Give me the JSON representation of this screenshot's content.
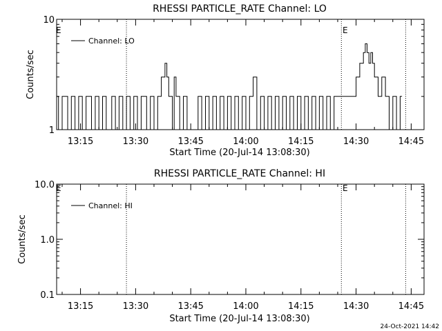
{
  "footer": {
    "timestamp": "24-Oct-2021 14:42"
  },
  "chart_data": [
    {
      "type": "line",
      "title": "RHESSI PARTICLE_RATE Channel: LO",
      "xlabel": "Start Time (20-Jul-14 13:08:30)",
      "ylabel": "Counts/sec",
      "yscale": "log",
      "ylim": [
        1,
        10
      ],
      "yticks": [
        "1",
        "10"
      ],
      "xlim": [
        "13:08:30",
        "14:48:30"
      ],
      "xticks": [
        "13:15",
        "13:30",
        "13:45",
        "14:00",
        "14:15",
        "14:30",
        "14:45"
      ],
      "legend": {
        "placement": "top-left",
        "entries": [
          "Channel: LO"
        ]
      },
      "annotations": [
        {
          "label": "E",
          "x": "13:08:30"
        },
        {
          "label": "E",
          "x": "14:26:00"
        }
      ],
      "vlines": [
        "13:27:30",
        "14:26:00",
        "14:43:30"
      ],
      "series": [
        {
          "name": "Channel: LO",
          "x": [
            "13:08:30",
            "13:09:00",
            "13:10:00",
            "13:11:30",
            "13:12:30",
            "13:13:30",
            "13:14:30",
            "13:15:30",
            "13:16:30",
            "13:18:00",
            "13:19:00",
            "13:20:00",
            "13:21:00",
            "13:22:00",
            "13:23:30",
            "13:24:30",
            "13:25:30",
            "13:26:30",
            "13:27:30",
            "13:28:30",
            "13:29:30",
            "13:30:30",
            "13:31:30",
            "13:33:00",
            "13:34:00",
            "13:35:00",
            "13:36:00",
            "13:37:00",
            "13:38:00",
            "13:38:30",
            "13:39:00",
            "13:40:00",
            "13:40:30",
            "13:41:00",
            "13:42:00",
            "13:43:00",
            "13:44:00",
            "13:47:00",
            "13:48:00",
            "13:49:00",
            "13:50:00",
            "13:51:00",
            "13:52:00",
            "13:53:00",
            "13:54:00",
            "13:55:00",
            "13:56:00",
            "13:57:00",
            "13:58:00",
            "13:59:00",
            "14:00:00",
            "14:01:00",
            "14:02:00",
            "14:03:00",
            "14:04:00",
            "14:05:00",
            "14:06:00",
            "14:07:00",
            "14:08:00",
            "14:09:00",
            "14:10:00",
            "14:11:00",
            "14:12:00",
            "14:13:00",
            "14:14:00",
            "14:15:00",
            "14:16:00",
            "14:17:00",
            "14:18:00",
            "14:19:00",
            "14:20:00",
            "14:21:00",
            "14:22:00",
            "14:23:00",
            "14:24:00",
            "14:26:00",
            "14:28:00",
            "14:29:00",
            "14:30:00",
            "14:31:00",
            "14:32:00",
            "14:32:30",
            "14:33:00",
            "14:33:30",
            "14:34:00",
            "14:34:30",
            "14:35:00",
            "14:36:00",
            "14:37:00",
            "14:38:00",
            "14:39:00",
            "14:40:00",
            "14:41:00",
            "14:42:00",
            "14:42:30"
          ],
          "y": [
            2,
            1,
            2,
            1,
            2,
            1,
            2,
            1,
            2,
            1,
            2,
            1,
            2,
            1,
            2,
            1,
            2,
            1,
            2,
            1,
            2,
            1,
            2,
            1,
            2,
            1,
            2,
            3,
            4,
            3,
            2,
            1,
            3,
            2,
            1,
            2,
            1,
            2,
            1,
            2,
            1,
            2,
            1,
            2,
            1,
            2,
            1,
            2,
            1,
            2,
            1,
            2,
            3,
            1,
            2,
            1,
            2,
            1,
            2,
            1,
            2,
            1,
            2,
            1,
            2,
            1,
            2,
            1,
            2,
            1,
            2,
            1,
            2,
            1,
            2,
            2,
            2,
            2,
            3,
            4,
            5,
            6,
            5,
            4,
            5,
            4,
            3,
            2,
            3,
            2,
            1,
            2,
            1,
            2,
            2
          ]
        }
      ]
    },
    {
      "type": "line",
      "title": "RHESSI PARTICLE_RATE Channel: HI",
      "xlabel": "Start Time (20-Jul-14 13:08:30)",
      "ylabel": "Counts/sec",
      "yscale": "log",
      "ylim": [
        0.1,
        10
      ],
      "yticks": [
        "0.1",
        "1.0",
        "10.0"
      ],
      "xlim": [
        "13:08:30",
        "14:48:30"
      ],
      "xticks": [
        "13:15",
        "13:30",
        "13:45",
        "14:00",
        "14:15",
        "14:30",
        "14:45"
      ],
      "legend": {
        "placement": "top-left",
        "entries": [
          "Channel: HI"
        ]
      },
      "annotations": [
        {
          "label": "E",
          "x": "13:08:30"
        },
        {
          "label": "E",
          "x": "14:26:00"
        }
      ],
      "vlines": [
        "13:27:30",
        "14:26:00",
        "14:43:30"
      ],
      "series": [
        {
          "name": "Channel: HI",
          "x": [],
          "y": []
        }
      ]
    }
  ]
}
